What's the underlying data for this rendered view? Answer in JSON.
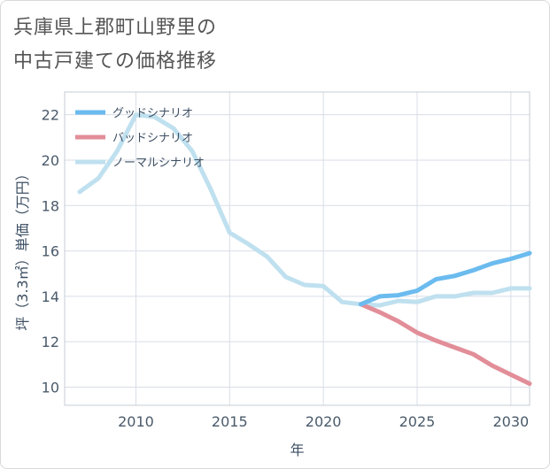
{
  "title_lines": [
    "兵庫県上郡町山野里の",
    "中古戸建ての価格推移"
  ],
  "chart_data": {
    "type": "line",
    "xlabel": "年",
    "ylabel": "坪（3.3㎡）単価（万円）",
    "xlim": [
      2006.2,
      2031
    ],
    "ylim": [
      9.2,
      23
    ],
    "x_ticks": [
      2010,
      2015,
      2020,
      2025,
      2030
    ],
    "y_ticks": [
      10,
      12,
      14,
      16,
      18,
      20,
      22
    ],
    "grid": true,
    "legend_position": "top-left",
    "series": [
      {
        "name": "グッドシナリオ",
        "color": "#6bbbef",
        "x": [
          2022,
          2023,
          2024,
          2025,
          2026,
          2027,
          2028,
          2029,
          2030,
          2031
        ],
        "y": [
          13.65,
          14.0,
          14.05,
          14.25,
          14.75,
          14.9,
          15.15,
          15.45,
          15.65,
          15.9
        ]
      },
      {
        "name": "バッドシナリオ",
        "color": "#e28e99",
        "x": [
          2022,
          2023,
          2024,
          2025,
          2026,
          2027,
          2028,
          2029,
          2030,
          2031
        ],
        "y": [
          13.65,
          13.3,
          12.9,
          12.4,
          12.05,
          11.75,
          11.45,
          10.95,
          10.55,
          10.15
        ]
      },
      {
        "name": "ノーマルシナリオ",
        "color": "#bfe0ef",
        "x": [
          2007,
          2008,
          2009,
          2010,
          2011,
          2012,
          2013,
          2014,
          2015,
          2016,
          2017,
          2018,
          2019,
          2020,
          2021,
          2022,
          2023,
          2024,
          2025,
          2026,
          2027,
          2028,
          2029,
          2030,
          2031
        ],
        "y": [
          18.6,
          19.2,
          20.4,
          22.0,
          21.9,
          21.4,
          20.4,
          18.7,
          16.8,
          16.3,
          15.75,
          14.85,
          14.5,
          14.45,
          13.75,
          13.65,
          13.6,
          13.8,
          13.75,
          14.0,
          14.0,
          14.15,
          14.15,
          14.35,
          14.35
        ]
      }
    ]
  }
}
